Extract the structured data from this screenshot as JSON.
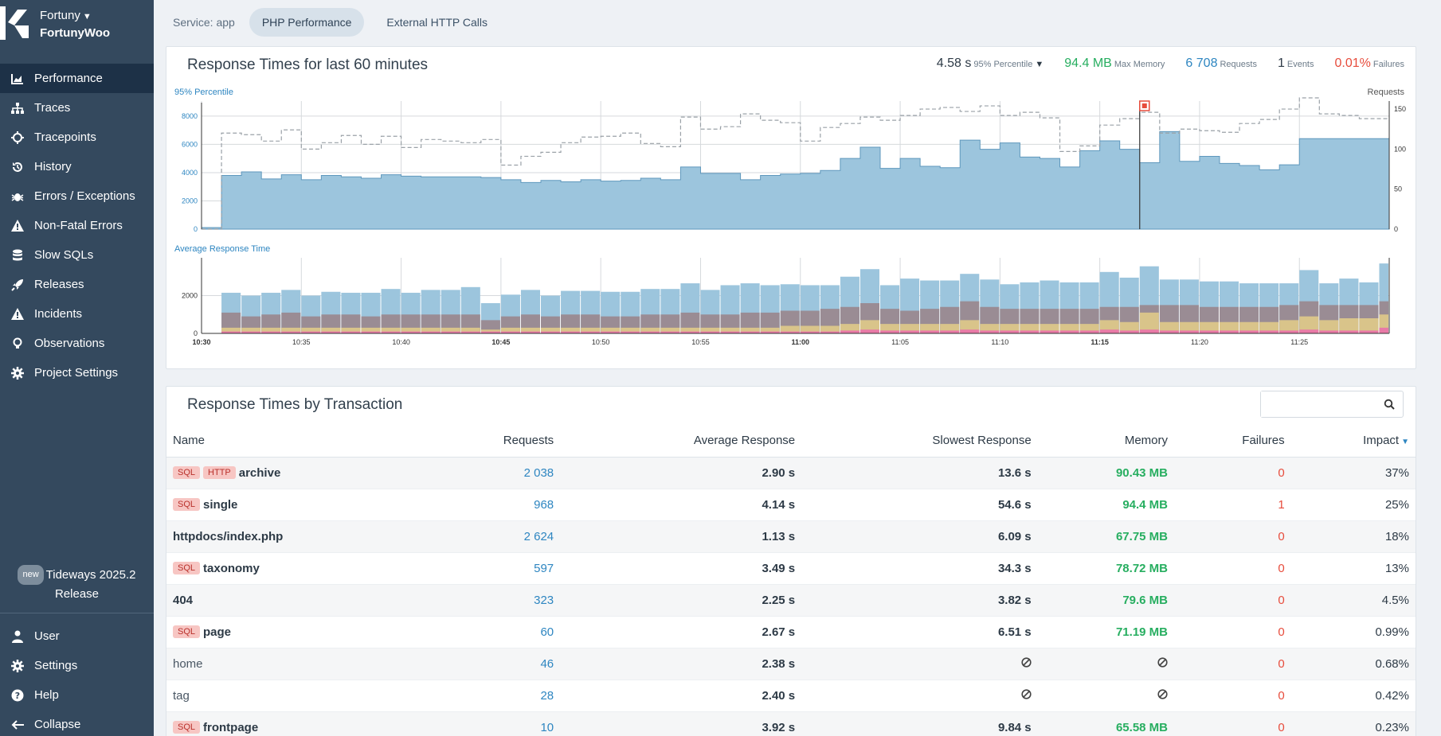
{
  "sidebar": {
    "org": "Fortuny",
    "project": "FortunyWoo",
    "items": [
      {
        "label": "Performance",
        "icon": "chart-area-icon",
        "active": true
      },
      {
        "label": "Traces",
        "icon": "sitemap-icon"
      },
      {
        "label": "Tracepoints",
        "icon": "crosshairs-icon"
      },
      {
        "label": "History",
        "icon": "history-icon"
      },
      {
        "label": "Errors / Exceptions",
        "icon": "bug-icon"
      },
      {
        "label": "Non-Fatal Errors",
        "icon": "warning-icon"
      },
      {
        "label": "Slow SQLs",
        "icon": "database-icon"
      },
      {
        "label": "Releases",
        "icon": "rocket-icon"
      },
      {
        "label": "Incidents",
        "icon": "warning-icon"
      },
      {
        "label": "Observations",
        "icon": "lightbulb-icon"
      },
      {
        "label": "Project Settings",
        "icon": "gear-icon"
      }
    ],
    "release_badge": "new",
    "release_line1": "Tideways 2025.2",
    "release_line2": "Release",
    "bottom_items": [
      {
        "label": "User",
        "icon": "user-icon"
      },
      {
        "label": "Settings",
        "icon": "gear-icon"
      },
      {
        "label": "Help",
        "icon": "question-icon"
      },
      {
        "label": "Collapse",
        "icon": "arrow-left-icon"
      }
    ]
  },
  "tabs": {
    "service_label": "Service:",
    "service_value": "app",
    "items": [
      "PHP Performance",
      "External HTTP Calls"
    ]
  },
  "response_card": {
    "title": "Response Times for last 60 minutes",
    "p95_value": "4.58 s",
    "p95_label": "95% Percentile",
    "memory_value": "94.4 MB",
    "memory_label": "Max Memory",
    "requests_value": "6 708",
    "requests_label": "Requests",
    "events_value": "1",
    "events_label": "Events",
    "failures_value": "0.01%",
    "failures_label": "Failures"
  },
  "chart_data": [
    {
      "type": "bar",
      "title": "95% Percentile",
      "ylabel_right": "Requests",
      "ylim": [
        0,
        8500
      ],
      "yticks": [
        0,
        2000,
        4000,
        6000,
        8000
      ],
      "ylim_right": [
        0,
        160
      ],
      "yticks_right": [
        0,
        50,
        100,
        150
      ],
      "x": [
        "10:30",
        "10:31",
        "10:32",
        "10:33",
        "10:34",
        "10:35",
        "10:36",
        "10:37",
        "10:38",
        "10:39",
        "10:40",
        "10:41",
        "10:42",
        "10:43",
        "10:44",
        "10:45",
        "10:46",
        "10:47",
        "10:48",
        "10:49",
        "10:50",
        "10:51",
        "10:52",
        "10:53",
        "10:54",
        "10:55",
        "10:56",
        "10:57",
        "10:58",
        "10:59",
        "11:00",
        "11:01",
        "11:02",
        "11:03",
        "11:04",
        "11:05",
        "11:06",
        "11:07",
        "11:08",
        "11:09",
        "11:10",
        "11:11",
        "11:12",
        "11:13",
        "11:14",
        "11:15",
        "11:16",
        "11:17",
        "11:18",
        "11:19",
        "11:20",
        "11:21",
        "11:22",
        "11:23",
        "11:24",
        "11:25",
        "11:26",
        "11:27",
        "11:28",
        "11:29"
      ],
      "series": [
        {
          "name": "95% Percentile",
          "values": [
            8500,
            3800,
            4050,
            3550,
            3850,
            3500,
            3800,
            3700,
            3600,
            3850,
            3750,
            3700,
            3700,
            3700,
            3650,
            3500,
            3300,
            3450,
            3350,
            3500,
            3400,
            3450,
            3600,
            3500,
            4400,
            3950,
            3950,
            3500,
            3800,
            3900,
            3950,
            4150,
            5000,
            5800,
            4300,
            5000,
            4450,
            4350,
            6300,
            5650,
            6100,
            5100,
            5000,
            4400,
            5550,
            6250,
            5650,
            4700,
            6900,
            4800,
            5150,
            4650,
            4500,
            4200,
            4550,
            6400,
            6400,
            6400,
            6400,
            6400
          ]
        },
        {
          "name": "Requests",
          "values": [
            0,
            120,
            118,
            110,
            124,
            100,
            108,
            117,
            106,
            116,
            102,
            112,
            110,
            108,
            112,
            80,
            91,
            96,
            108,
            115,
            116,
            120,
            107,
            103,
            140,
            125,
            128,
            144,
            136,
            133,
            110,
            127,
            132,
            140,
            136,
            142,
            150,
            152,
            147,
            154,
            142,
            146,
            139,
            97,
            104,
            130,
            138,
            146,
            120,
            125,
            123,
            121,
            132,
            137,
            150,
            164,
            144,
            142,
            138,
            138
          ]
        }
      ],
      "annotation": "1 Event at 11:17"
    },
    {
      "type": "bar",
      "title": "Average Response Time",
      "ylim": [
        0,
        4000
      ],
      "yticks": [
        0,
        2000
      ],
      "x_tick_labels": [
        "10:30",
        "10:35",
        "10:40",
        "10:45",
        "10:50",
        "10:55",
        "11:00",
        "11:05",
        "11:10",
        "11:15",
        "11:20",
        "11:25"
      ],
      "bold_ticks": [
        "10:30",
        "10:45",
        "11:00",
        "11:15"
      ],
      "series": [
        {
          "name": "total",
          "values": [
            3000,
            2150,
            2000,
            2150,
            2300,
            2000,
            2200,
            2150,
            2150,
            2350,
            2150,
            2300,
            2300,
            2450,
            1600,
            2050,
            2300,
            2000,
            2250,
            2250,
            2200,
            2200,
            2350,
            2350,
            2650,
            2300,
            2550,
            2650,
            2550,
            2600,
            2550,
            2550,
            3000,
            3400,
            2550,
            2900,
            2800,
            2800,
            3150,
            2850,
            2600,
            2700,
            2800,
            2700,
            2700,
            3250,
            2950,
            3550,
            2850,
            2850,
            2750,
            2750,
            2650,
            2650,
            2650,
            3350,
            2650,
            2900,
            2700,
            3700
          ]
        },
        {
          "name": "io",
          "values": [
            1400,
            1100,
            900,
            1000,
            1100,
            900,
            1000,
            1000,
            900,
            1000,
            1000,
            1000,
            1000,
            1000,
            700,
            900,
            1000,
            900,
            1000,
            1000,
            900,
            900,
            1000,
            1000,
            1100,
            1000,
            1000,
            1100,
            1100,
            1200,
            1200,
            1300,
            1400,
            1600,
            1300,
            1200,
            1300,
            1400,
            1700,
            1400,
            1300,
            1300,
            1300,
            1300,
            1300,
            1400,
            1400,
            1500,
            1500,
            1500,
            1400,
            1400,
            1400,
            1400,
            1500,
            1700,
            1500,
            1500,
            1500,
            1700
          ]
        },
        {
          "name": "db",
          "values": [
            300,
            300,
            300,
            300,
            300,
            300,
            300,
            300,
            300,
            300,
            300,
            300,
            300,
            300,
            200,
            300,
            300,
            300,
            300,
            300,
            300,
            300,
            300,
            300,
            300,
            300,
            300,
            300,
            300,
            400,
            400,
            400,
            500,
            700,
            500,
            500,
            500,
            500,
            700,
            500,
            500,
            500,
            500,
            500,
            500,
            700,
            600,
            1100,
            600,
            600,
            600,
            600,
            600,
            600,
            700,
            900,
            700,
            800,
            800,
            1000
          ]
        },
        {
          "name": "http",
          "values": [
            100,
            100,
            100,
            100,
            100,
            100,
            100,
            100,
            100,
            100,
            100,
            100,
            100,
            100,
            100,
            100,
            100,
            100,
            100,
            100,
            100,
            100,
            100,
            100,
            100,
            100,
            100,
            100,
            100,
            100,
            100,
            100,
            150,
            200,
            150,
            150,
            150,
            150,
            200,
            150,
            150,
            150,
            150,
            150,
            150,
            200,
            150,
            200,
            150,
            150,
            150,
            150,
            150,
            150,
            150,
            200,
            150,
            150,
            150,
            300
          ]
        }
      ]
    }
  ],
  "transactions": {
    "title": "Response Times by Transaction",
    "search_placeholder": "",
    "columns": [
      "Name",
      "Requests",
      "Average Response",
      "Slowest Response",
      "Memory",
      "Failures",
      "Impact"
    ],
    "rows": [
      {
        "tags": [
          "SQL",
          "HTTP"
        ],
        "name": "archive",
        "requests": "2 038",
        "avg": "2.90 s",
        "slowest": "13.6 s",
        "memory": "90.43 MB",
        "failures": "0",
        "impact": "37%"
      },
      {
        "tags": [
          "SQL"
        ],
        "name": "single",
        "requests": "968",
        "avg": "4.14 s",
        "slowest": "54.6 s",
        "memory": "94.4 MB",
        "failures": "1",
        "impact": "25%"
      },
      {
        "tags": [],
        "name": "httpdocs/index.php",
        "requests": "2 624",
        "avg": "1.13 s",
        "slowest": "6.09 s",
        "memory": "67.75 MB",
        "failures": "0",
        "impact": "18%"
      },
      {
        "tags": [
          "SQL"
        ],
        "name": "taxonomy",
        "requests": "597",
        "avg": "3.49 s",
        "slowest": "34.3 s",
        "memory": "78.72 MB",
        "failures": "0",
        "impact": "13%"
      },
      {
        "tags": [],
        "name": "404",
        "requests": "323",
        "avg": "2.25 s",
        "slowest": "3.82 s",
        "memory": "79.6 MB",
        "failures": "0",
        "impact": "4.5%"
      },
      {
        "tags": [
          "SQL"
        ],
        "name": "page",
        "requests": "60",
        "avg": "2.67 s",
        "slowest": "6.51 s",
        "memory": "71.19 MB",
        "failures": "0",
        "impact": "0.99%"
      },
      {
        "tags": [],
        "name": "home",
        "plain": true,
        "requests": "46",
        "avg": "2.38 s",
        "slowest": "",
        "memory": "",
        "failures": "0",
        "impact": "0.68%"
      },
      {
        "tags": [],
        "name": "tag",
        "plain": true,
        "requests": "28",
        "avg": "2.40 s",
        "slowest": "",
        "memory": "",
        "failures": "0",
        "impact": "0.42%"
      },
      {
        "tags": [
          "SQL"
        ],
        "name": "frontpage",
        "requests": "10",
        "avg": "3.92 s",
        "slowest": "9.84 s",
        "memory": "65.58 MB",
        "failures": "0",
        "impact": "0.23%"
      }
    ]
  }
}
